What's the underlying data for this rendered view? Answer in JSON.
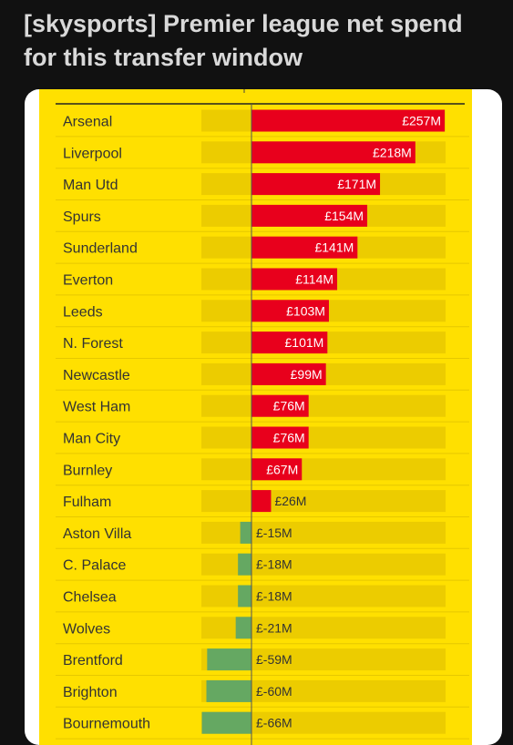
{
  "post": {
    "title": "[skysports] Premier league net spend for this transfer window"
  },
  "colors": {
    "background": "#111111",
    "panel": "#ffe000",
    "track": "#eccc00",
    "positive": "#e8001c",
    "negative": "#65a862",
    "row_divider": "#e6c800"
  },
  "chart_data": {
    "type": "bar",
    "orientation": "horizontal",
    "title": "",
    "xlabel": "",
    "ylabel": "",
    "unit": "£M",
    "categories": [
      "Arsenal",
      "Liverpool",
      "Man Utd",
      "Spurs",
      "Sunderland",
      "Everton",
      "Leeds",
      "N. Forest",
      "Newcastle",
      "West Ham",
      "Man City",
      "Burnley",
      "Fulham",
      "Aston Villa",
      "C. Palace",
      "Chelsea",
      "Wolves",
      "Brentford",
      "Brighton",
      "Bournemouth"
    ],
    "values": [
      257,
      218,
      171,
      154,
      141,
      114,
      103,
      101,
      99,
      76,
      76,
      67,
      26,
      -15,
      -18,
      -18,
      -21,
      -59,
      -60,
      -66
    ],
    "labels": [
      "£257M",
      "£218M",
      "£171M",
      "£154M",
      "£141M",
      "£114M",
      "£103M",
      "£101M",
      "£99M",
      "£76M",
      "£76M",
      "£67M",
      "£26M",
      "£-15M",
      "£-18M",
      "£-18M",
      "£-21M",
      "£-59M",
      "£-60M",
      "£-66M"
    ],
    "xlim": [
      -66,
      257
    ],
    "grid": false,
    "legend": "none"
  }
}
